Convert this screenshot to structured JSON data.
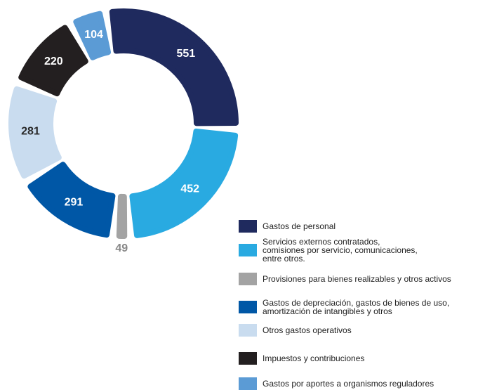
{
  "chart_data": {
    "type": "donut",
    "categories": [
      "Gastos de personal",
      "Servicios externos contratados,\ncomisiones por servicio, comunicaciones,\nentre otros.",
      "Provisiones para bienes realizables y otros activos",
      "Gastos de depreciación, gastos de bienes de uso,\namortización de intangibles y otros",
      "Otros gastos operativos",
      "Impuestos y contribuciones",
      "Gastos por aportes a organismos reguladores"
    ],
    "values": [
      551,
      452,
      49,
      291,
      281,
      220,
      104
    ],
    "colors": [
      "#1f2a5e",
      "#29aae1",
      "#a3a3a3",
      "#0057a6",
      "#c9dcef",
      "#231f20",
      "#5b9bd5"
    ]
  }
}
